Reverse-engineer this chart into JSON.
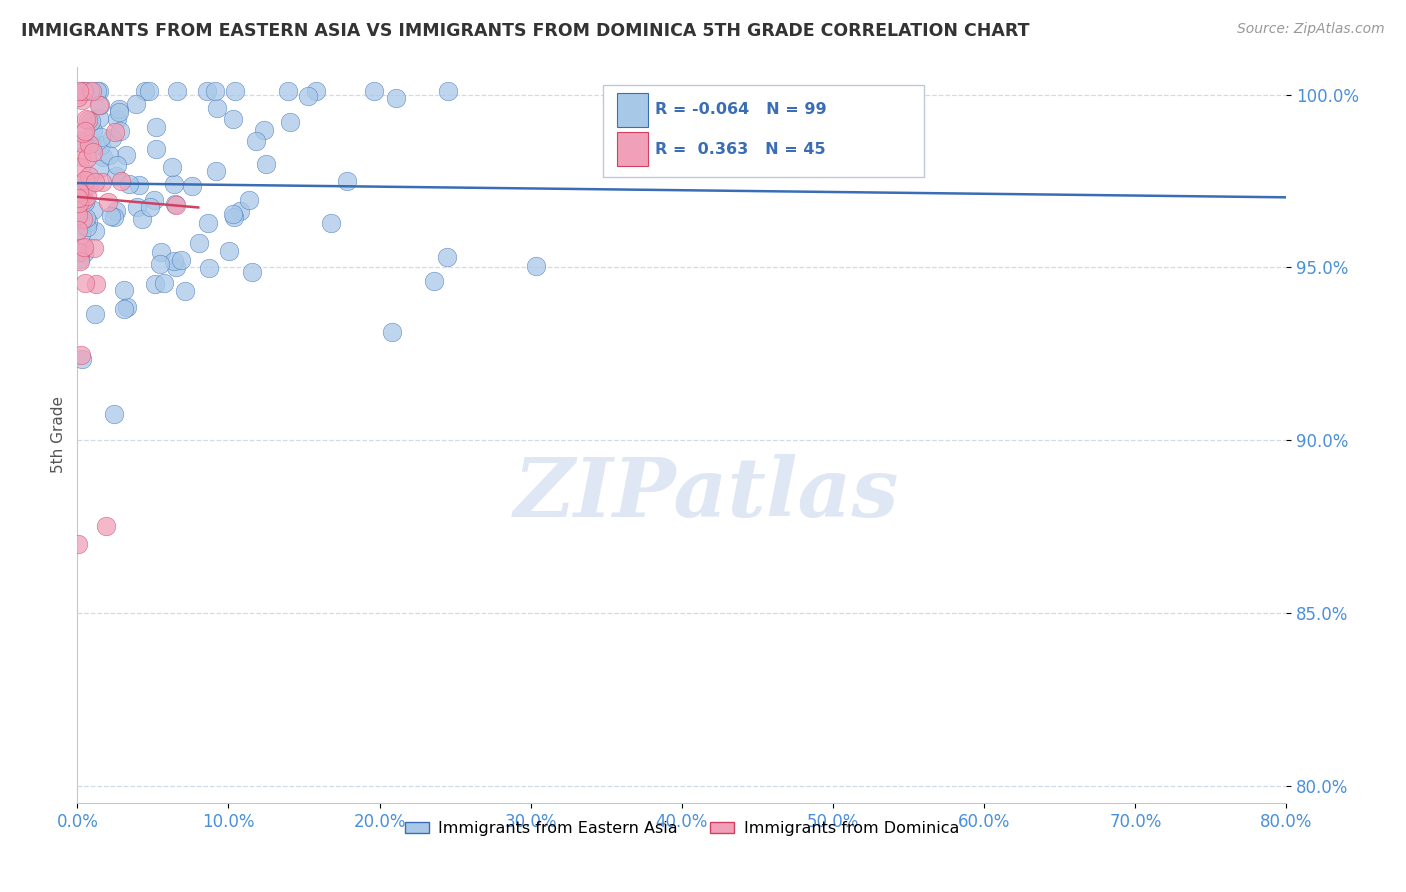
{
  "title": "IMMIGRANTS FROM EASTERN ASIA VS IMMIGRANTS FROM DOMINICA 5TH GRADE CORRELATION CHART",
  "source": "Source: ZipAtlas.com",
  "ylabel": "5th Grade",
  "r_blue": -0.064,
  "n_blue": 99,
  "r_pink": 0.363,
  "n_pink": 45,
  "xlim": [
    0.0,
    0.8
  ],
  "ylim": [
    0.795,
    1.008
  ],
  "yticks": [
    0.8,
    0.85,
    0.9,
    0.95,
    1.0
  ],
  "ytick_labels": [
    "80.0%",
    "85.0%",
    "90.0%",
    "95.0%",
    "100.0%"
  ],
  "xticks": [
    0.0,
    0.1,
    0.2,
    0.3,
    0.4,
    0.5,
    0.6,
    0.7,
    0.8
  ],
  "xtick_labels": [
    "0.0%",
    "10.0%",
    "20.0%",
    "30.0%",
    "40.0%",
    "50.0%",
    "60.0%",
    "70.0%",
    "80.0%"
  ],
  "color_blue": "#a8c8e8",
  "color_blue_line": "#3a6db5",
  "color_pink": "#f0a0b8",
  "color_pink_line": "#d04060",
  "tick_color": "#4a90d9",
  "legend_label_blue": "Immigrants from Eastern Asia",
  "legend_label_pink": "Immigrants from Dominica",
  "watermark": "ZIPatlas",
  "title_color": "#333333",
  "source_color": "#999999",
  "ylabel_color": "#555555",
  "grid_color": "#c0d4e8",
  "spine_color": "#c0c8d8"
}
